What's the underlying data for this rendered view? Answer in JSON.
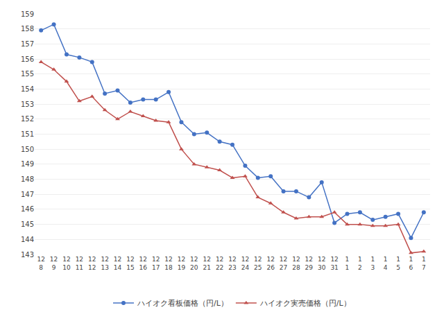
{
  "chart_data": {
    "type": "line",
    "categories": [
      "12\n8",
      "12\n9",
      "12\n10",
      "12\n11",
      "12\n12",
      "12\n13",
      "12\n14",
      "12\n15",
      "12\n16",
      "12\n17",
      "12\n18",
      "12\n19",
      "12\n20",
      "12\n21",
      "12\n22",
      "12\n23",
      "12\n24",
      "12\n25",
      "12\n26",
      "12\n27",
      "12\n28",
      "12\n29",
      "12\n30",
      "12\n31",
      "1\n1",
      "1\n2",
      "1\n3",
      "1\n4",
      "1\n5",
      "1\n6",
      "1\n7"
    ],
    "series": [
      {
        "name": "ハイオク看板価格（円/L）",
        "color": "#4472C4",
        "marker": "circle",
        "values": [
          157.9,
          158.3,
          156.3,
          156.1,
          155.8,
          153.7,
          153.9,
          153.1,
          153.3,
          153.3,
          153.8,
          151.8,
          151.0,
          151.1,
          150.5,
          150.3,
          148.9,
          148.1,
          148.2,
          147.2,
          147.2,
          146.8,
          147.8,
          145.1,
          145.7,
          145.8,
          145.3,
          145.5,
          145.7,
          144.1,
          145.8
        ]
      },
      {
        "name": "ハイオク実売価格（円/L）",
        "color": "#C0504D",
        "marker": "triangle",
        "values": [
          155.8,
          155.3,
          154.5,
          153.2,
          153.5,
          152.6,
          152.0,
          152.5,
          152.2,
          151.9,
          151.8,
          150.0,
          149.0,
          148.8,
          148.6,
          148.1,
          148.2,
          146.8,
          146.4,
          145.8,
          145.4,
          145.5,
          145.5,
          145.8,
          145.0,
          145.0,
          144.9,
          144.9,
          145.0,
          143.1,
          143.2
        ]
      }
    ],
    "ylim": [
      143,
      159
    ],
    "yticks": [
      143,
      144,
      145,
      146,
      147,
      148,
      149,
      150,
      151,
      152,
      153,
      154,
      155,
      156,
      157,
      158,
      159
    ],
    "grid": true,
    "legend": "bottom"
  }
}
